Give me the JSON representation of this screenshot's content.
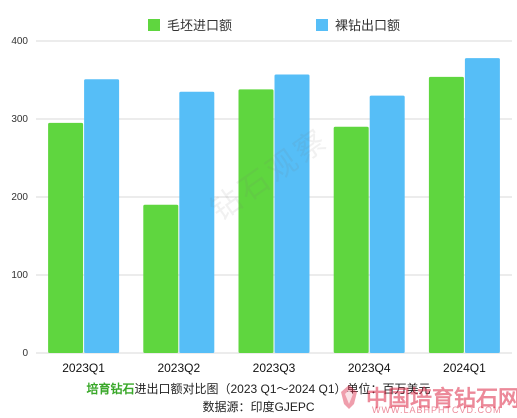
{
  "chart_data": {
    "type": "bar",
    "categories": [
      "2023Q1",
      "2023Q2",
      "2023Q3",
      "2023Q4",
      "2024Q1"
    ],
    "series": [
      {
        "name": "毛坯进口额",
        "color": "#5fd63f",
        "values": [
          295,
          190,
          338,
          290,
          354
        ]
      },
      {
        "name": "裸钻出口额",
        "color": "#56bef7",
        "values": [
          351,
          335,
          357,
          330,
          378
        ]
      }
    ],
    "yticks": [
      0,
      100,
      200,
      300,
      400
    ],
    "ylim": [
      0,
      400
    ],
    "grid": true,
    "legend_position": "top-center"
  },
  "caption": {
    "brand": "培育钻石",
    "title": "进出口额对比图（2023 Q1～2024 Q1）单位：百万美元",
    "source": "数据源：印度GJEPC"
  },
  "watermark": {
    "text": "钻石观察"
  },
  "logo": {
    "title": "中国培育钻石网",
    "url": "WWW.LABHPHTCVD.COM"
  }
}
